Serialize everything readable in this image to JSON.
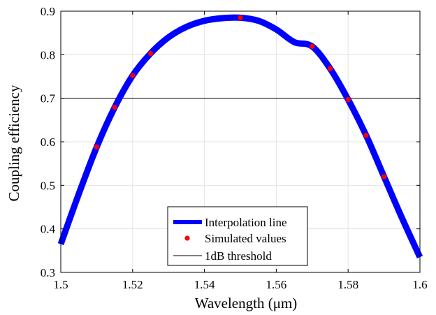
{
  "chart_data": {
    "type": "line",
    "xlabel": "Wavelength (μm)",
    "ylabel": "Coupling efficiency",
    "xlim": [
      1.5,
      1.6
    ],
    "ylim": [
      0.3,
      0.9
    ],
    "x_ticks": [
      "1.5",
      "1.52",
      "1.54",
      "1.56",
      "1.58",
      "1.6"
    ],
    "y_ticks": [
      "0.3",
      "0.4",
      "0.5",
      "0.6",
      "0.7",
      "0.8",
      "0.9"
    ],
    "grid": true,
    "legend_position": "bottom-center",
    "series": [
      {
        "name": "Interpolation line",
        "style": "thick-line",
        "color": "#0000ff",
        "x": [
          1.5,
          1.505,
          1.51,
          1.515,
          1.52,
          1.525,
          1.53,
          1.535,
          1.54,
          1.545,
          1.55,
          1.555,
          1.56,
          1.565,
          1.57,
          1.575,
          1.58,
          1.585,
          1.59,
          1.595,
          1.6
        ],
        "y": [
          0.365,
          0.48,
          0.588,
          0.679,
          0.752,
          0.803,
          0.84,
          0.864,
          0.878,
          0.884,
          0.885,
          0.878,
          0.858,
          0.829,
          0.819,
          0.768,
          0.697,
          0.615,
          0.52,
          0.425,
          0.335
        ]
      },
      {
        "name": "Simulated values",
        "style": "markers",
        "color": "#ff0000",
        "x": [
          1.51,
          1.515,
          1.52,
          1.525,
          1.55,
          1.57,
          1.575,
          1.58,
          1.585,
          1.59
        ],
        "y": [
          0.588,
          0.679,
          0.752,
          0.803,
          0.885,
          0.819,
          0.768,
          0.697,
          0.615,
          0.52
        ]
      },
      {
        "name": "1dB threshold",
        "style": "thin-line",
        "color": "#000000",
        "x": [
          1.5,
          1.6
        ],
        "y": [
          0.7,
          0.7
        ]
      }
    ]
  }
}
